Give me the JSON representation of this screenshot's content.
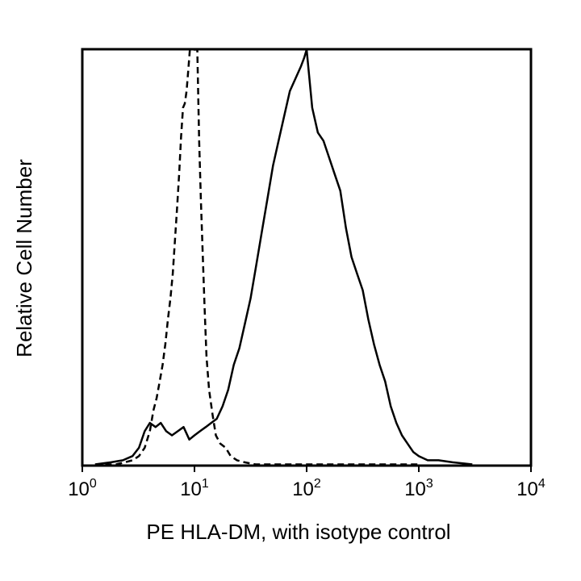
{
  "chart_data": {
    "type": "line",
    "title": "",
    "xlabel": "PE HLA-DM, with isotype control",
    "ylabel": "Relative Cell Number",
    "x_scale": "log",
    "xlim": [
      1,
      10000
    ],
    "ylim": [
      0,
      100
    ],
    "grid": false,
    "legend": "none",
    "x_ticks": [
      {
        "base": "10",
        "exp": "0"
      },
      {
        "base": "10",
        "exp": "1"
      },
      {
        "base": "10",
        "exp": "2"
      },
      {
        "base": "10",
        "exp": "3"
      },
      {
        "base": "10",
        "exp": "4"
      }
    ],
    "series": [
      {
        "style": "dashed",
        "color": "#000000",
        "x": [
          1.6,
          2.0,
          2.4,
          2.8,
          3.2,
          3.6,
          4.0,
          4.3,
          4.6,
          4.9,
          5.2,
          5.5,
          5.8,
          6.1,
          6.4,
          6.7,
          7.0,
          7.3,
          7.6,
          7.9,
          8.2,
          8.5,
          8.8,
          9.1,
          9.4,
          9.7,
          10.0,
          10.3,
          10.6,
          11.0,
          11.4,
          11.8,
          12.3,
          12.8,
          13.5,
          14.5,
          15.5,
          17.0,
          19.0,
          21.0,
          24.0,
          28.0,
          35.0,
          50.0,
          100.0,
          300.0,
          1000.0
        ],
        "y": [
          0,
          0,
          0.5,
          1,
          2,
          4,
          8,
          13,
          16,
          20,
          24,
          29,
          35,
          40,
          46,
          54,
          62,
          70,
          79,
          86,
          87,
          90,
          95,
          100,
          100,
          100,
          100,
          100,
          100,
          78,
          64,
          52,
          38,
          26,
          18,
          12,
          7,
          5,
          4,
          2,
          1,
          0.5,
          0,
          0,
          0,
          0,
          0
        ]
      },
      {
        "style": "solid",
        "color": "#000000",
        "x": [
          1.3,
          1.8,
          2.3,
          2.8,
          3.2,
          3.6,
          4.0,
          4.5,
          5.0,
          5.6,
          6.3,
          7.1,
          8.0,
          9.0,
          10.0,
          11.2,
          12.6,
          14.1,
          15.8,
          17.8,
          20.0,
          22.4,
          25.1,
          28.2,
          31.6,
          35.5,
          39.8,
          44.7,
          50.1,
          56.2,
          63.1,
          70.8,
          79.4,
          89.1,
          95.0,
          100.0,
          112.2,
          125.9,
          141.3,
          158.5,
          177.8,
          199.5,
          223.9,
          251.2,
          281.8,
          316.2,
          354.8,
          398.1,
          446.7,
          501.2,
          562.3,
          631.0,
          707.9,
          794.3,
          891.3,
          1000.0,
          1200.0,
          1500.0,
          2000.0,
          3000.0
        ],
        "y": [
          0,
          0.5,
          1,
          2,
          4,
          8,
          10,
          9,
          10,
          8,
          7,
          8,
          9,
          6,
          7,
          8,
          9,
          10,
          11,
          14,
          18,
          24,
          28,
          34,
          40,
          48,
          56,
          64,
          72,
          78,
          84,
          90,
          93,
          96,
          98,
          100,
          86,
          80,
          78,
          74,
          70,
          66,
          57,
          50,
          46,
          42,
          35,
          29,
          24,
          20,
          14,
          10,
          7,
          5,
          3,
          2,
          1,
          1,
          0.5,
          0
        ]
      }
    ]
  }
}
